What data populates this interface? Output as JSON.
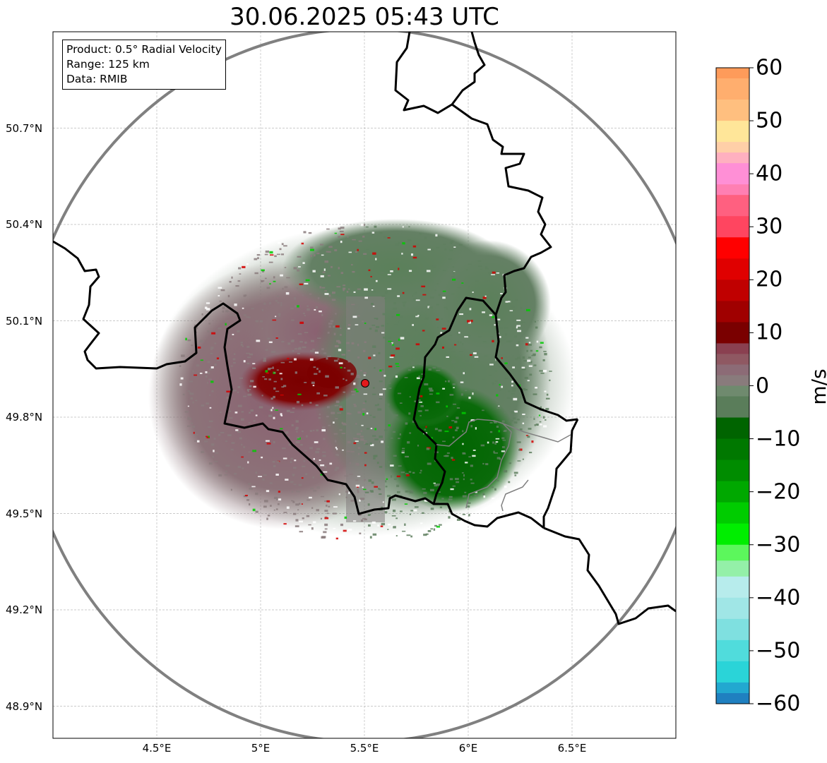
{
  "title": "30.06.2025 05:43 UTC",
  "info": {
    "product": "Product: 0.5° Radial Velocity",
    "range": "Range: 125 km",
    "data": "Data: RMIB"
  },
  "axes": {
    "lon_ticks": [
      "4.5°E",
      "5°E",
      "5.5°E",
      "6°E",
      "6.5°E"
    ],
    "lat_ticks": [
      "50.7°N",
      "50.4°N",
      "50.1°N",
      "49.8°N",
      "49.5°N",
      "49.2°N",
      "48.9°N"
    ],
    "lon_range": [
      4.0,
      7.0
    ],
    "lat_range": [
      48.8,
      51.0
    ]
  },
  "radar": {
    "lon": 5.5,
    "lat": 49.91,
    "range_km": 125,
    "marker_color": "#e31a1c"
  },
  "colorbar": {
    "label": "m/s",
    "min": -60,
    "max": 60,
    "ticks": [
      "60",
      "50",
      "40",
      "30",
      "20",
      "10",
      "0",
      "−10",
      "−20",
      "−30",
      "−40",
      "−50",
      "−60"
    ],
    "tick_values": [
      60,
      50,
      40,
      30,
      20,
      10,
      0,
      -10,
      -20,
      -30,
      -40,
      -50,
      -60
    ],
    "bands": [
      {
        "from": 58,
        "to": 60,
        "color": "#fe9b5a"
      },
      {
        "from": 54,
        "to": 58,
        "color": "#ffae6e"
      },
      {
        "from": 50,
        "to": 54,
        "color": "#ffbf7f"
      },
      {
        "from": 46,
        "to": 50,
        "color": "#ffe699"
      },
      {
        "from": 44,
        "to": 46,
        "color": "#ffcfa8"
      },
      {
        "from": 42,
        "to": 44,
        "color": "#ffb0c0"
      },
      {
        "from": 38,
        "to": 42,
        "color": "#ff8fd6"
      },
      {
        "from": 36,
        "to": 38,
        "color": "#ff7fb3"
      },
      {
        "from": 32,
        "to": 36,
        "color": "#ff6080"
      },
      {
        "from": 28,
        "to": 32,
        "color": "#ff4560"
      },
      {
        "from": 24,
        "to": 28,
        "color": "#ff0000"
      },
      {
        "from": 20,
        "to": 24,
        "color": "#e00000"
      },
      {
        "from": 16,
        "to": 20,
        "color": "#c00000"
      },
      {
        "from": 12,
        "to": 16,
        "color": "#a00000"
      },
      {
        "from": 8,
        "to": 12,
        "color": "#7a0000"
      },
      {
        "from": 6,
        "to": 8,
        "color": "#8a4050"
      },
      {
        "from": 4,
        "to": 6,
        "color": "#8f5862"
      },
      {
        "from": 2,
        "to": 4,
        "color": "#8c6b76"
      },
      {
        "from": 0,
        "to": 2,
        "color": "#897b7c"
      },
      {
        "from": -2,
        "to": 0,
        "color": "#6f8a6e"
      },
      {
        "from": -6,
        "to": -2,
        "color": "#5a7d5a"
      },
      {
        "from": -10,
        "to": -6,
        "color": "#006400"
      },
      {
        "from": -14,
        "to": -10,
        "color": "#007800"
      },
      {
        "from": -18,
        "to": -14,
        "color": "#008c00"
      },
      {
        "from": -22,
        "to": -18,
        "color": "#00a800"
      },
      {
        "from": -26,
        "to": -22,
        "color": "#00cc00"
      },
      {
        "from": -30,
        "to": -26,
        "color": "#00ee00"
      },
      {
        "from": -33,
        "to": -30,
        "color": "#5cf75c"
      },
      {
        "from": -36,
        "to": -33,
        "color": "#94f0a8"
      },
      {
        "from": -40,
        "to": -36,
        "color": "#b7ecec"
      },
      {
        "from": -44,
        "to": -40,
        "color": "#a0e6e6"
      },
      {
        "from": -48,
        "to": -44,
        "color": "#7fe0e0"
      },
      {
        "from": -52,
        "to": -48,
        "color": "#50dcdc"
      },
      {
        "from": -56,
        "to": -52,
        "color": "#2ad4d8"
      },
      {
        "from": -58,
        "to": -56,
        "color": "#22a8d0"
      },
      {
        "from": -60,
        "to": -58,
        "color": "#1f80c0"
      }
    ]
  },
  "colors": {
    "outbound": "#7a0000",
    "inbound": "#006400",
    "near_zero_pos": "#897b7c",
    "near_zero_neg": "#5f7f5f",
    "border": "#000000",
    "range_ring": "#808080"
  }
}
